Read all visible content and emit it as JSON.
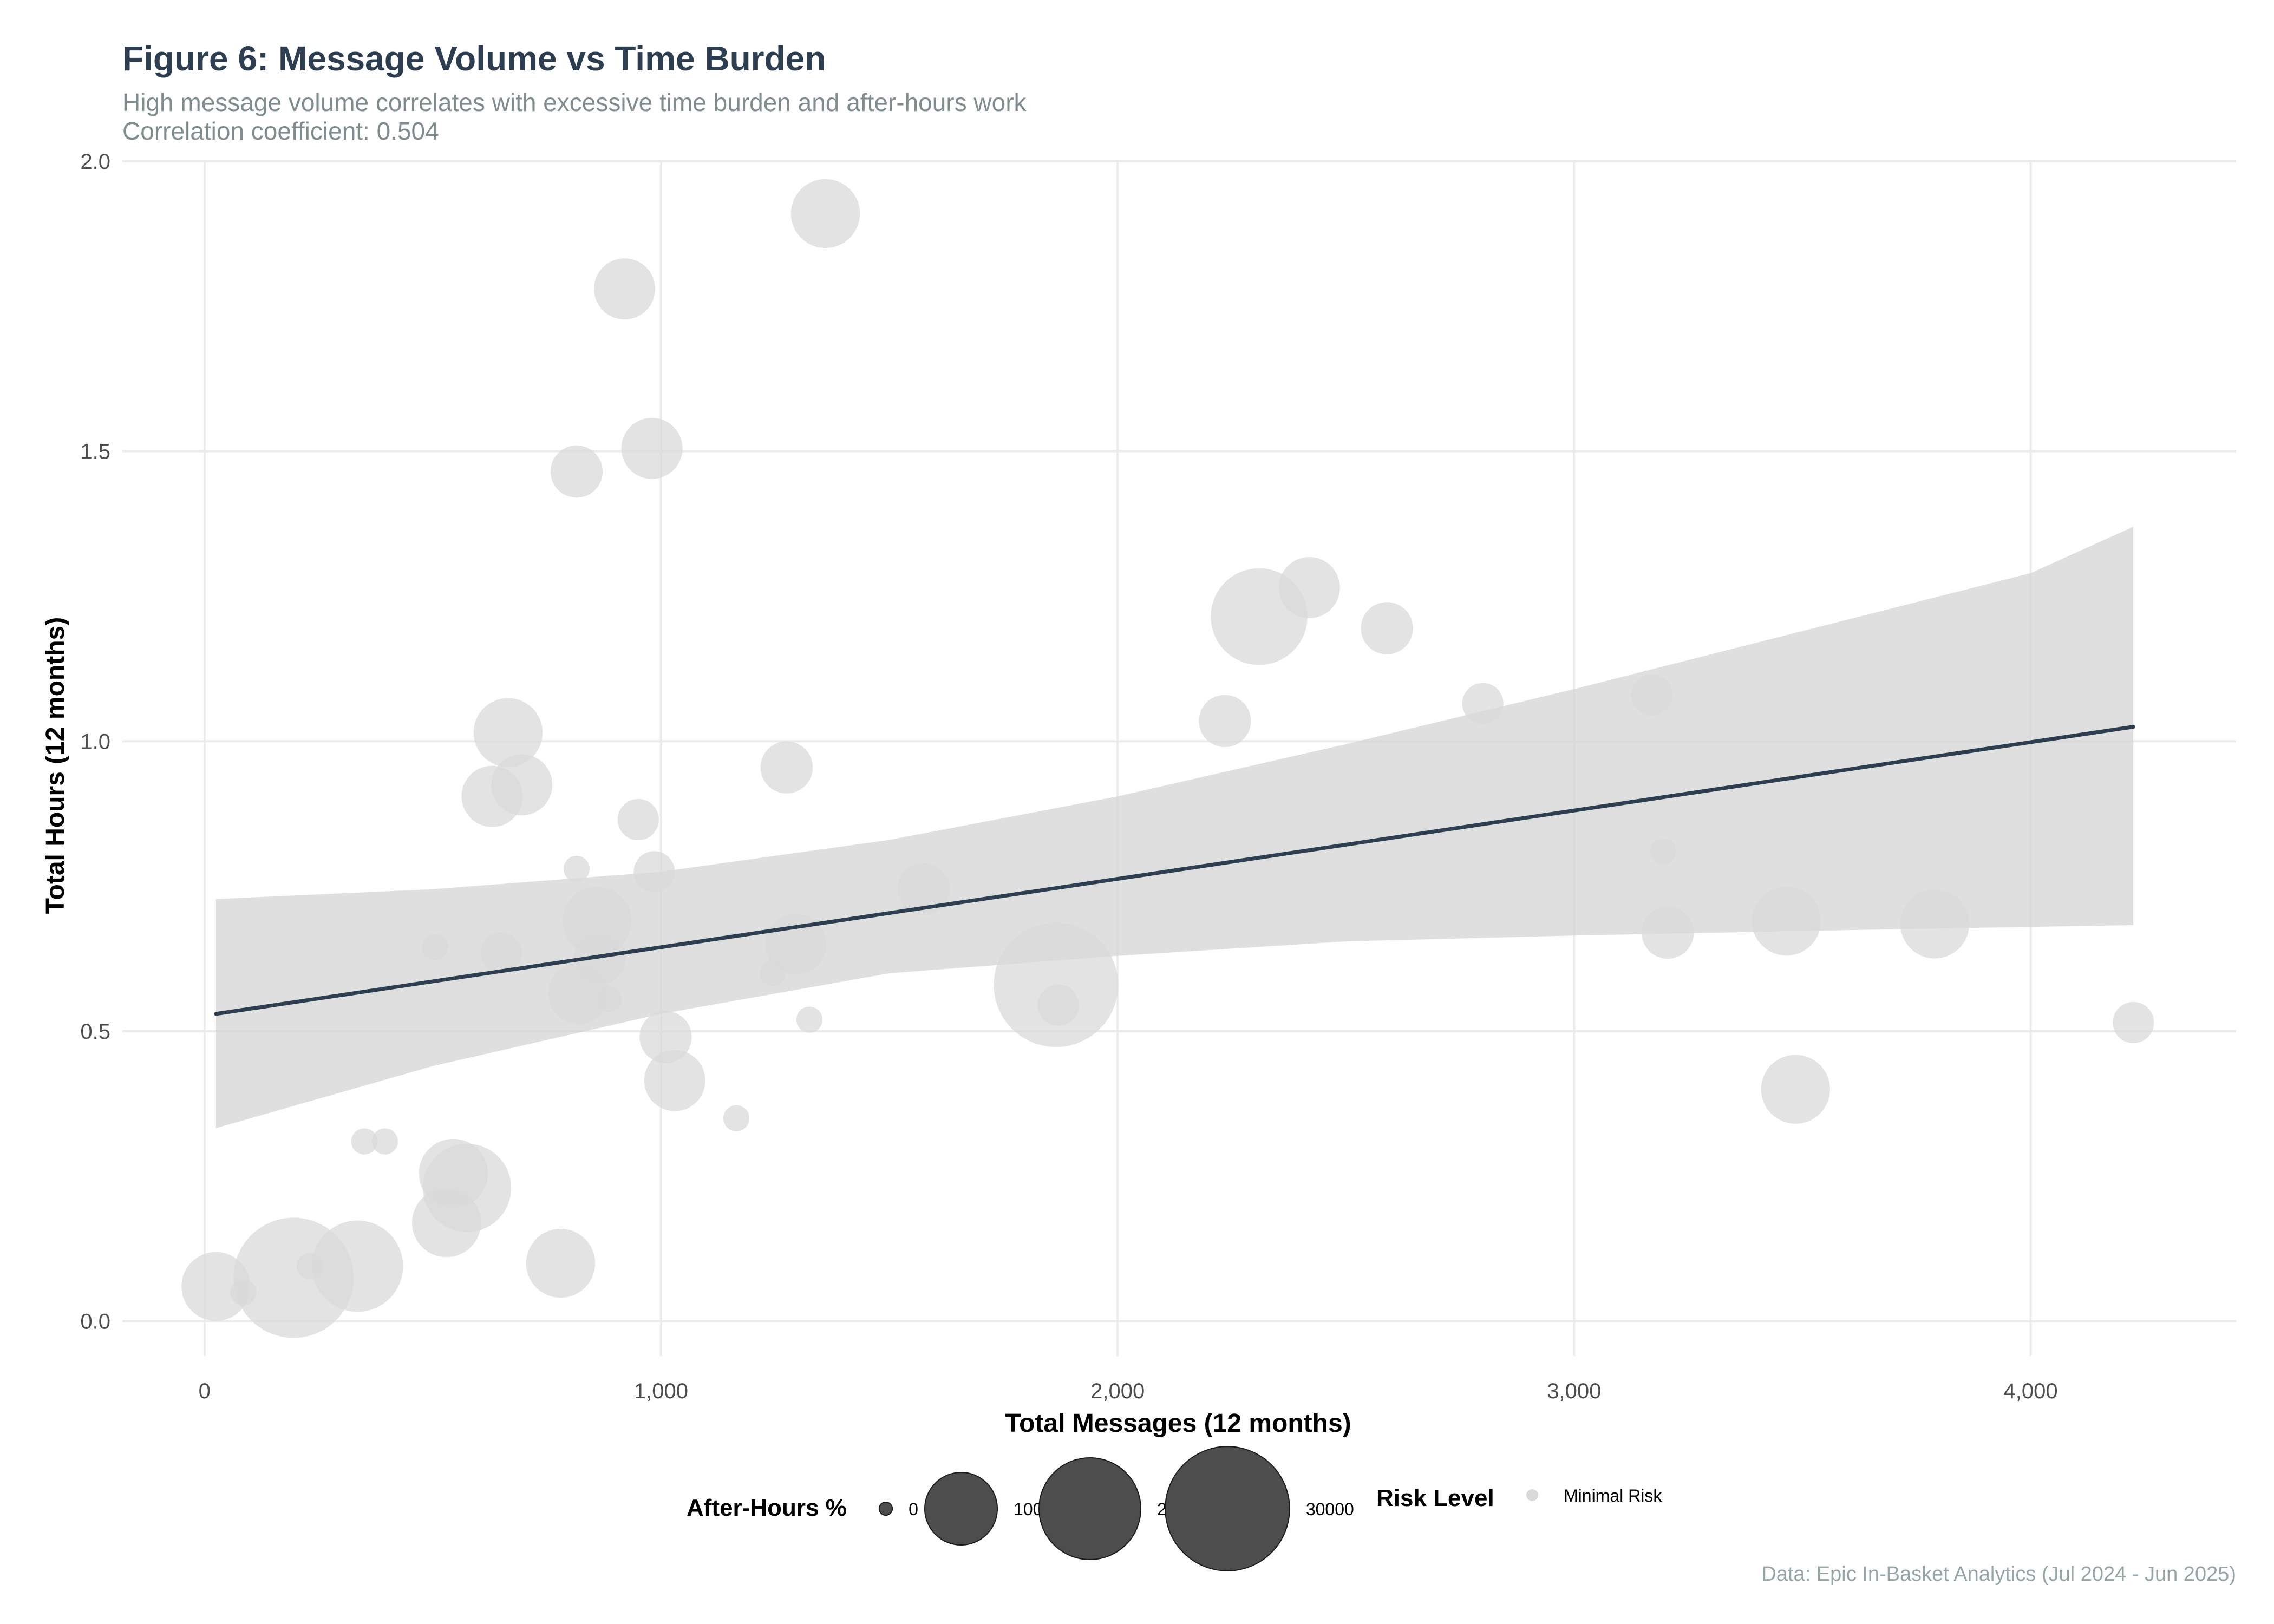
{
  "chart_data": {
    "type": "scatter",
    "title": "Figure 6: Message Volume vs Time Burden",
    "subtitle_lines": [
      "High message volume correlates with excessive time burden and after-hours work",
      "Correlation coefficient: 0.504"
    ],
    "xlabel": "Total Messages (12 months)",
    "ylabel": "Total Hours (12 months)",
    "xlim": [
      -180,
      4450
    ],
    "ylim": [
      -0.06,
      2.0
    ],
    "x_ticks": [
      0,
      1000,
      2000,
      3000,
      4000
    ],
    "x_tick_labels": [
      "0",
      "1,000",
      "2,000",
      "3,000",
      "4,000"
    ],
    "y_ticks": [
      0.0,
      0.5,
      1.0,
      1.5,
      2.0
    ],
    "y_tick_labels": [
      "0.0",
      "0.5",
      "1.0",
      "1.5",
      "2.0"
    ],
    "grid": true,
    "point_color": "#d9d9d9",
    "trend_color": "#2c3e50",
    "band_color": "#d3d3d3",
    "legend_placement": "bottom",
    "trend_line": {
      "x": [
        25,
        4225
      ],
      "y": [
        0.53,
        1.025
      ]
    },
    "confidence_band": {
      "x": [
        25,
        500,
        1000,
        1500,
        2000,
        2500,
        3000,
        3500,
        4000,
        4225
      ],
      "upper": [
        0.728,
        0.745,
        0.775,
        0.83,
        0.905,
        0.995,
        1.09,
        1.19,
        1.29,
        1.37
      ],
      "lower": [
        0.333,
        0.44,
        0.53,
        0.6,
        0.63,
        0.655,
        0.665,
        0.673,
        0.68,
        0.683
      ]
    },
    "points": [
      {
        "x": 1360,
        "y": 1.91,
        "after_hours": 9000
      },
      {
        "x": 920,
        "y": 1.78,
        "after_hours": 7000
      },
      {
        "x": 815,
        "y": 1.465,
        "after_hours": 5000
      },
      {
        "x": 980,
        "y": 1.505,
        "after_hours": 7000
      },
      {
        "x": 2420,
        "y": 1.265,
        "after_hours": 7000
      },
      {
        "x": 2310,
        "y": 1.215,
        "after_hours": 18000
      },
      {
        "x": 2590,
        "y": 1.195,
        "after_hours": 5000
      },
      {
        "x": 665,
        "y": 1.015,
        "after_hours": 9000
      },
      {
        "x": 2235,
        "y": 1.035,
        "after_hours": 5000
      },
      {
        "x": 2800,
        "y": 1.065,
        "after_hours": 3000
      },
      {
        "x": 3170,
        "y": 1.08,
        "after_hours": 3000
      },
      {
        "x": 695,
        "y": 0.925,
        "after_hours": 7000
      },
      {
        "x": 630,
        "y": 0.905,
        "after_hours": 7000
      },
      {
        "x": 1275,
        "y": 0.955,
        "after_hours": 5000
      },
      {
        "x": 950,
        "y": 0.865,
        "after_hours": 3000
      },
      {
        "x": 3195,
        "y": 0.81,
        "after_hours": 1000
      },
      {
        "x": 815,
        "y": 0.78,
        "after_hours": 1000
      },
      {
        "x": 985,
        "y": 0.775,
        "after_hours": 3000
      },
      {
        "x": 1575,
        "y": 0.745,
        "after_hours": 5000
      },
      {
        "x": 860,
        "y": 0.69,
        "after_hours": 9000
      },
      {
        "x": 3465,
        "y": 0.69,
        "after_hours": 9000
      },
      {
        "x": 3790,
        "y": 0.685,
        "after_hours": 9000
      },
      {
        "x": 3205,
        "y": 0.67,
        "after_hours": 5000
      },
      {
        "x": 1295,
        "y": 0.65,
        "after_hours": 7000
      },
      {
        "x": 505,
        "y": 0.645,
        "after_hours": 1000
      },
      {
        "x": 650,
        "y": 0.635,
        "after_hours": 3000
      },
      {
        "x": 865,
        "y": 0.625,
        "after_hours": 5000
      },
      {
        "x": 1245,
        "y": 0.6,
        "after_hours": 1000
      },
      {
        "x": 1865,
        "y": 0.58,
        "after_hours": 30000
      },
      {
        "x": 820,
        "y": 0.565,
        "after_hours": 7000
      },
      {
        "x": 885,
        "y": 0.555,
        "after_hours": 1000
      },
      {
        "x": 1870,
        "y": 0.545,
        "after_hours": 3000
      },
      {
        "x": 1325,
        "y": 0.52,
        "after_hours": 1000
      },
      {
        "x": 4225,
        "y": 0.515,
        "after_hours": 3000
      },
      {
        "x": 1010,
        "y": 0.49,
        "after_hours": 5000
      },
      {
        "x": 1030,
        "y": 0.415,
        "after_hours": 7000
      },
      {
        "x": 3485,
        "y": 0.4,
        "after_hours": 9000
      },
      {
        "x": 1165,
        "y": 0.35,
        "after_hours": 1000
      },
      {
        "x": 350,
        "y": 0.31,
        "after_hours": 1000
      },
      {
        "x": 395,
        "y": 0.31,
        "after_hours": 1000
      },
      {
        "x": 545,
        "y": 0.255,
        "after_hours": 9000
      },
      {
        "x": 575,
        "y": 0.23,
        "after_hours": 15000
      },
      {
        "x": 530,
        "y": 0.17,
        "after_hours": 9000
      },
      {
        "x": 780,
        "y": 0.1,
        "after_hours": 9000
      },
      {
        "x": 335,
        "y": 0.095,
        "after_hours": 16000
      },
      {
        "x": 230,
        "y": 0.095,
        "after_hours": 1000
      },
      {
        "x": 195,
        "y": 0.075,
        "after_hours": 28000
      },
      {
        "x": 25,
        "y": 0.06,
        "after_hours": 9000
      },
      {
        "x": 85,
        "y": 0.05,
        "after_hours": 1000
      }
    ],
    "size_legend": {
      "title": "After-Hours %",
      "entries": [
        {
          "value": 0,
          "label": "0"
        },
        {
          "value": 10000,
          "label": "10000"
        },
        {
          "value": 20000,
          "label": "20000"
        },
        {
          "value": 30000,
          "label": "30000"
        }
      ]
    },
    "risk_legend": {
      "title": "Risk Level",
      "entries": [
        {
          "label": "Minimal Risk"
        }
      ]
    },
    "caption": "Data: Epic In-Basket Analytics (Jul 2024 - Jun 2025)"
  }
}
